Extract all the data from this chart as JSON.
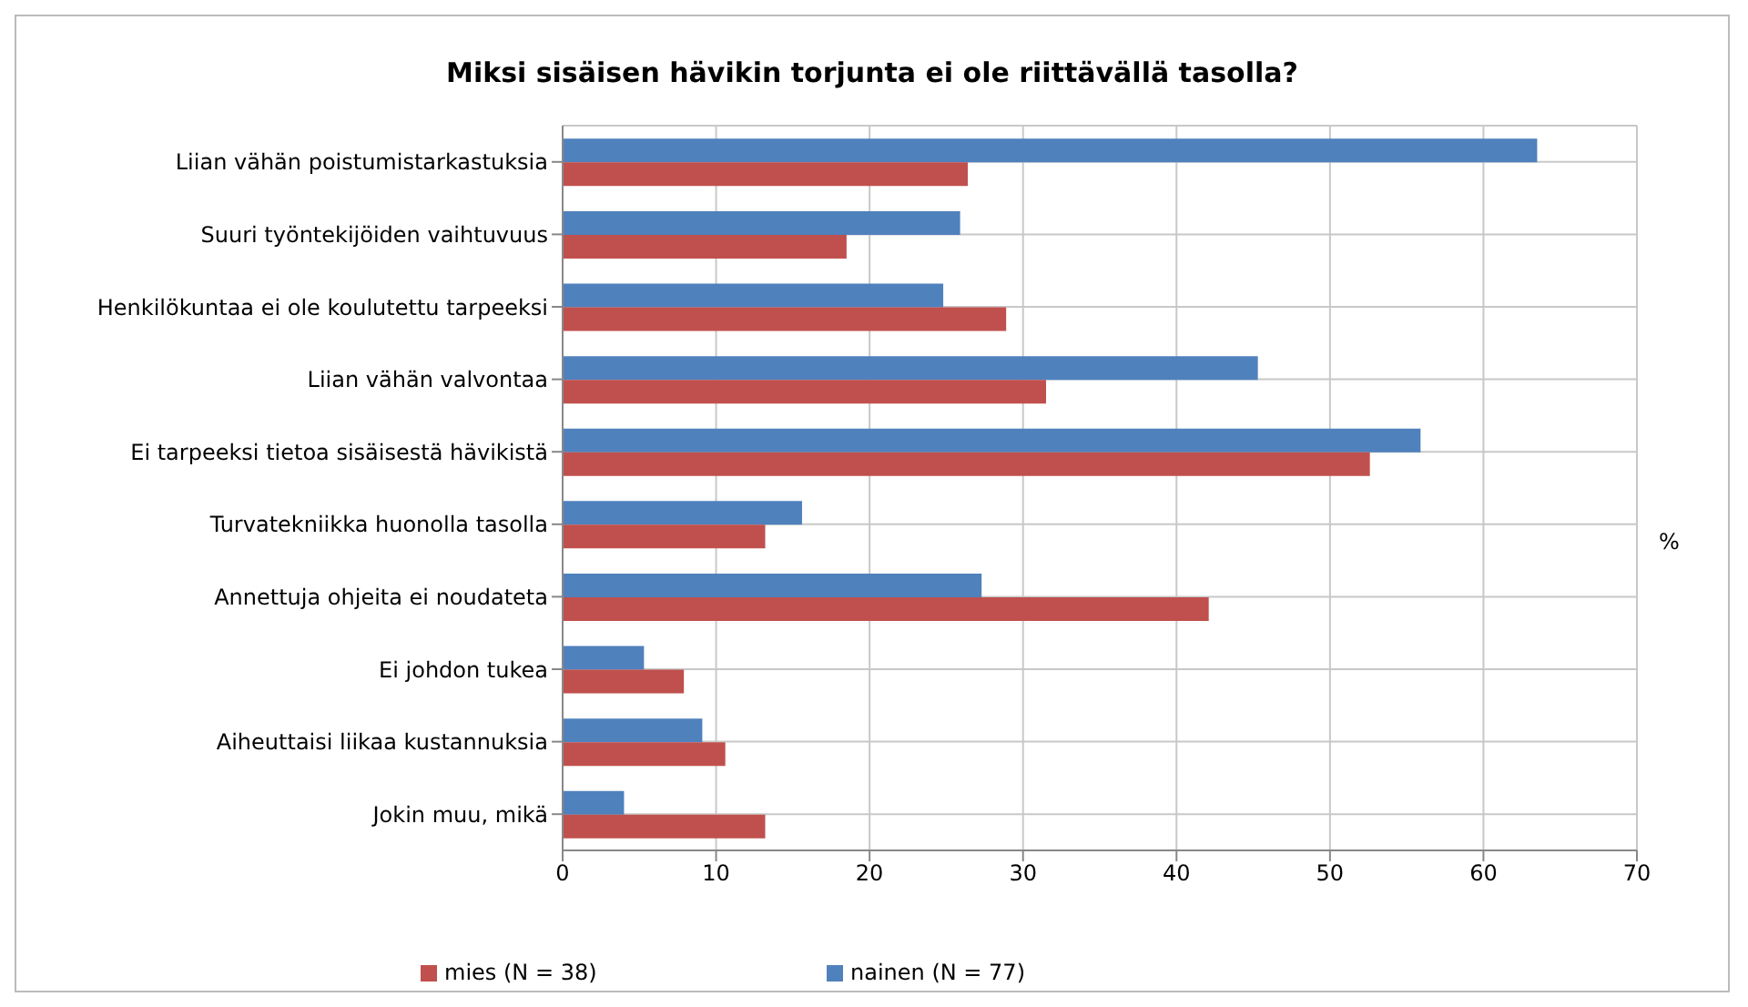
{
  "chart_data": {
    "type": "bar",
    "orientation": "horizontal",
    "title": "Miksi sisäisen hävikin torjunta ei ole riittävällä tasolla?",
    "xlabel": "%",
    "categories": [
      "Liian vähän poistumistarkastuksia",
      "Suuri työntekijöiden vaihtuvuus",
      "Henkilökuntaa ei ole koulutettu tarpeeksi",
      "Liian vähän valvontaa",
      "Ei tarpeeksi tietoa sisäisestä hävikistä",
      "Turvatekniikka huonolla tasolla",
      "Annettuja ohjeita ei noudateta",
      "Ei johdon tukea",
      "Aiheuttaisi liikaa kustannuksia",
      "Jokin muu, mikä"
    ],
    "series": [
      {
        "name": "nainen (N = 77)",
        "color": "#4f81bd",
        "values": [
          63.5,
          25.9,
          24.8,
          45.3,
          55.9,
          15.6,
          27.3,
          5.3,
          9.1,
          4.0
        ]
      },
      {
        "name": "mies (N = 38)",
        "color": "#c0504d",
        "values": [
          26.4,
          18.5,
          28.9,
          31.5,
          52.6,
          13.2,
          42.1,
          7.9,
          10.6,
          13.2
        ]
      }
    ],
    "xlim": [
      0,
      70
    ],
    "xticks": [
      0,
      10,
      20,
      30,
      40,
      50,
      60,
      70
    ],
    "grid": true,
    "legend": "bottom"
  }
}
